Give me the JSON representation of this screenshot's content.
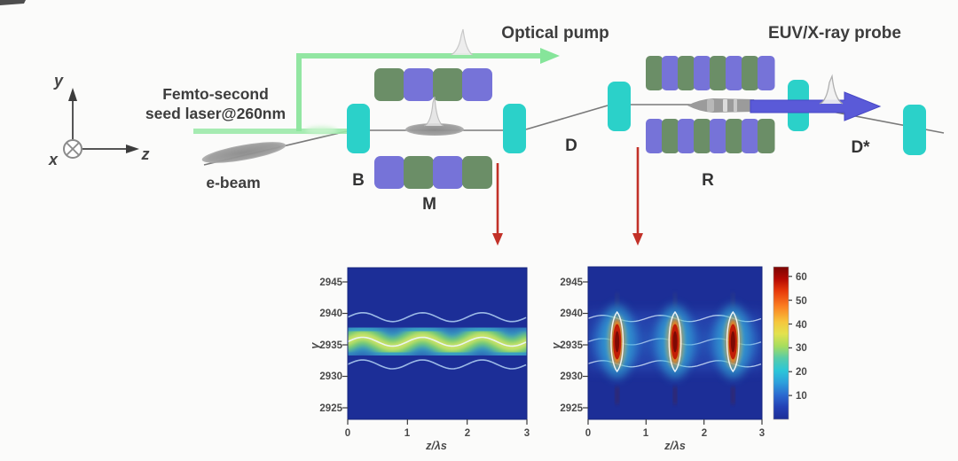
{
  "figure": {
    "labels": {
      "seed_laser_line1": "Femto-second",
      "seed_laser_line2": "seed laser@260nm",
      "optical_pump": "Optical pump",
      "euv_probe": "EUV/X-ray probe",
      "e_beam": "e-beam",
      "chicane": "B",
      "modulator": "M",
      "drift": "D",
      "radiator": "R",
      "drift_star": "D*"
    },
    "axes_triad": {
      "y": "y",
      "x": "x",
      "z": "z"
    }
  },
  "colors": {
    "cyan_box": "#2bd1c9",
    "undulator_green": "#6b8e67",
    "undulator_purple": "#7673d8",
    "green_laser": "#98e9a8",
    "blue_arrow": "#5a5ad8",
    "red_arrow": "#c23128",
    "beam_gray": "#7a7a7a",
    "plot_background": "#1c2e97"
  },
  "undulators": {
    "modulator_top": [
      "green",
      "purple",
      "green",
      "purple"
    ],
    "modulator_bottom": [
      "purple",
      "green",
      "purple",
      "green"
    ],
    "radiator_top": [
      "green",
      "purple",
      "green",
      "purple",
      "green",
      "purple",
      "green",
      "purple"
    ],
    "radiator_bottom": [
      "purple",
      "green",
      "purple",
      "green",
      "purple",
      "green",
      "purple",
      "green"
    ]
  },
  "chart_data": [
    {
      "type": "heatmap",
      "subplot": "longitudinal phase space after modulator M (sinusoidal energy modulation)",
      "xlabel": "z/λs",
      "ylabel": "γ",
      "xlim": [
        0,
        3
      ],
      "ylim": [
        2923,
        2947
      ],
      "xticks": [
        0,
        1,
        2,
        3
      ],
      "yticks": [
        2945,
        2940,
        2935,
        2930,
        2925
      ],
      "modulation_period_z": 1,
      "band_center_gamma": 2935.5,
      "modulation_amplitude_gamma": 2,
      "contour_gamma": [
        2939.4,
        2935.5,
        2931.9
      ],
      "colormap": "jet",
      "peak_density": 40,
      "grid": false
    },
    {
      "type": "heatmap",
      "subplot": "longitudinal phase space after radiator R (microbunched beam)",
      "xlabel": "z/λs",
      "ylabel": "γ",
      "xlim": [
        0,
        3
      ],
      "ylim": [
        2923,
        2947
      ],
      "xticks": [
        0,
        1,
        2,
        3
      ],
      "yticks": [
        2945,
        2940,
        2935,
        2930,
        2925
      ],
      "microbunch_z": [
        0.5,
        1.5,
        2.5
      ],
      "contour_gamma": [
        2939.2,
        2935.5,
        2932.0
      ],
      "colormap": "jet",
      "peak_density": 65,
      "grid": false,
      "colorbar": {
        "range": [
          0,
          64
        ],
        "ticks_top_to_bottom": [
          60,
          50,
          40,
          30,
          20,
          10
        ],
        "position": "right"
      }
    }
  ]
}
